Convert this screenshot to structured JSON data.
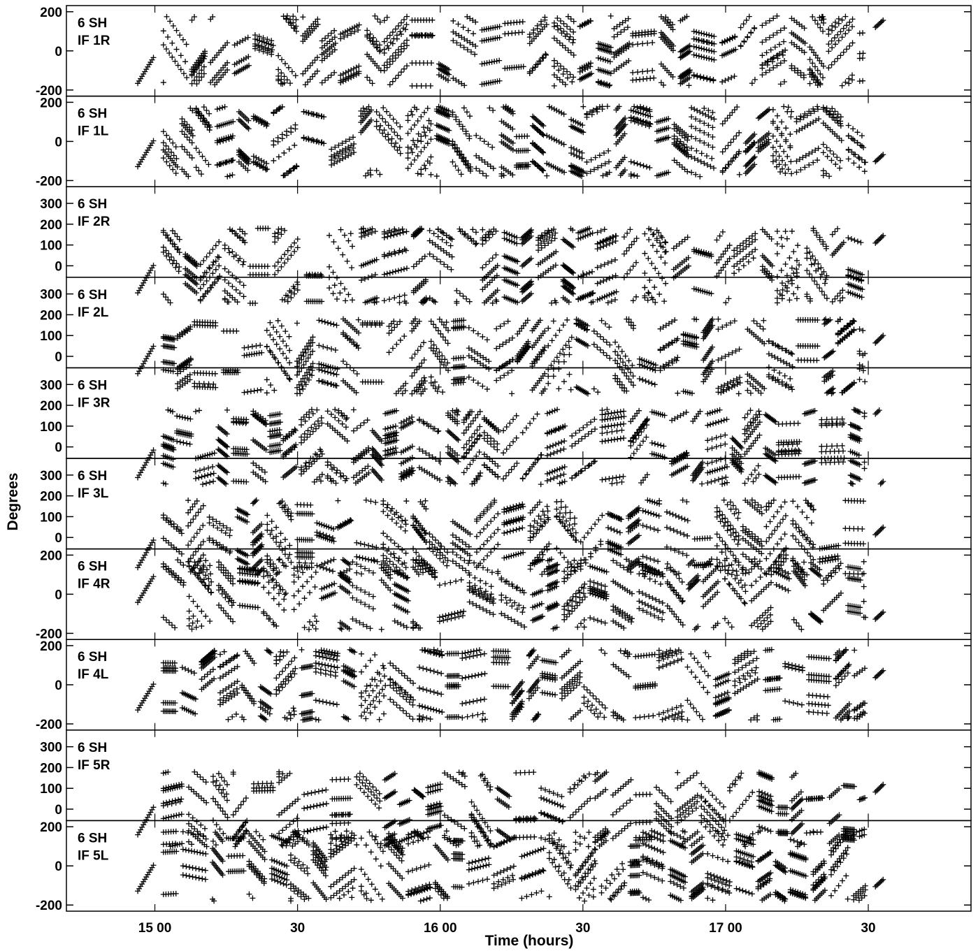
{
  "chart_data": {
    "type": "scatter",
    "marker": "+",
    "color": "#000000",
    "xlabel": "Time (hours)",
    "ylabel": "Degrees",
    "x_ticks": [
      {
        "t": 15.0,
        "label": "15 00"
      },
      {
        "t": 15.5,
        "label": "30"
      },
      {
        "t": 16.0,
        "label": "16 00"
      },
      {
        "t": 16.5,
        "label": "30"
      },
      {
        "t": 17.0,
        "label": "17 00"
      },
      {
        "t": 17.5,
        "label": "30"
      }
    ],
    "xlim": [
      14.69,
      17.86
    ],
    "panels": [
      {
        "label_line1": "6 SH",
        "label_line2": "IF 1R",
        "ylim": [
          -210,
          210
        ],
        "yticks": [
          {
            "v": 200,
            "label": "200"
          },
          {
            "v": 0,
            "label": "0"
          },
          {
            "v": -200,
            "label": "-200"
          }
        ]
      },
      {
        "label_line1": "6 SH",
        "label_line2": "IF 1L",
        "ylim": [
          -210,
          210
        ],
        "yticks": [
          {
            "v": 200,
            "label": "200"
          },
          {
            "v": 0,
            "label": "0"
          },
          {
            "v": -200,
            "label": "-200"
          }
        ]
      },
      {
        "label_line1": "6 SH",
        "label_line2": "IF 2R",
        "ylim": [
          -35,
          360
        ],
        "yticks": [
          {
            "v": 300,
            "label": "300"
          },
          {
            "v": 200,
            "label": "200"
          },
          {
            "v": 100,
            "label": "100"
          },
          {
            "v": 0,
            "label": "0"
          }
        ]
      },
      {
        "label_line1": "6 SH",
        "label_line2": "IF 2L",
        "ylim": [
          -35,
          360
        ],
        "yticks": [
          {
            "v": 300,
            "label": "300"
          },
          {
            "v": 200,
            "label": "200"
          },
          {
            "v": 100,
            "label": "100"
          },
          {
            "v": 0,
            "label": "0"
          }
        ]
      },
      {
        "label_line1": "6 SH",
        "label_line2": "IF 3R",
        "ylim": [
          -35,
          360
        ],
        "yticks": [
          {
            "v": 300,
            "label": "300"
          },
          {
            "v": 200,
            "label": "200"
          },
          {
            "v": 100,
            "label": "100"
          },
          {
            "v": 0,
            "label": "0"
          }
        ]
      },
      {
        "label_line1": "6 SH",
        "label_line2": "IF 3L",
        "ylim": [
          -35,
          360
        ],
        "yticks": [
          {
            "v": 300,
            "label": "300"
          },
          {
            "v": 200,
            "label": "200"
          },
          {
            "v": 100,
            "label": "100"
          },
          {
            "v": 0,
            "label": "0"
          }
        ]
      },
      {
        "label_line1": "6 SH",
        "label_line2": "IF 4R",
        "ylim": [
          -210,
          210
        ],
        "yticks": [
          {
            "v": 200,
            "label": "200"
          },
          {
            "v": 0,
            "label": "0"
          },
          {
            "v": -200,
            "label": "-200"
          }
        ]
      },
      {
        "label_line1": "6 SH",
        "label_line2": "IF 4L",
        "ylim": [
          -210,
          210
        ],
        "yticks": [
          {
            "v": 200,
            "label": "200"
          },
          {
            "v": 0,
            "label": "0"
          },
          {
            "v": -200,
            "label": "-200"
          }
        ]
      },
      {
        "label_line1": "6 SH",
        "label_line2": "IF 5R",
        "ylim": [
          -35,
          360
        ],
        "yticks": [
          {
            "v": 300,
            "label": "300"
          },
          {
            "v": 200,
            "label": "200"
          },
          {
            "v": 100,
            "label": "100"
          },
          {
            "v": 0,
            "label": "0"
          }
        ]
      },
      {
        "label_line1": "6 SH",
        "label_line2": "IF 5L",
        "ylim": [
          -210,
          210
        ],
        "yticks": [
          {
            "v": 200,
            "label": "200"
          },
          {
            "v": 0,
            "label": "0"
          },
          {
            "v": -200,
            "label": "-200"
          }
        ]
      }
    ]
  }
}
